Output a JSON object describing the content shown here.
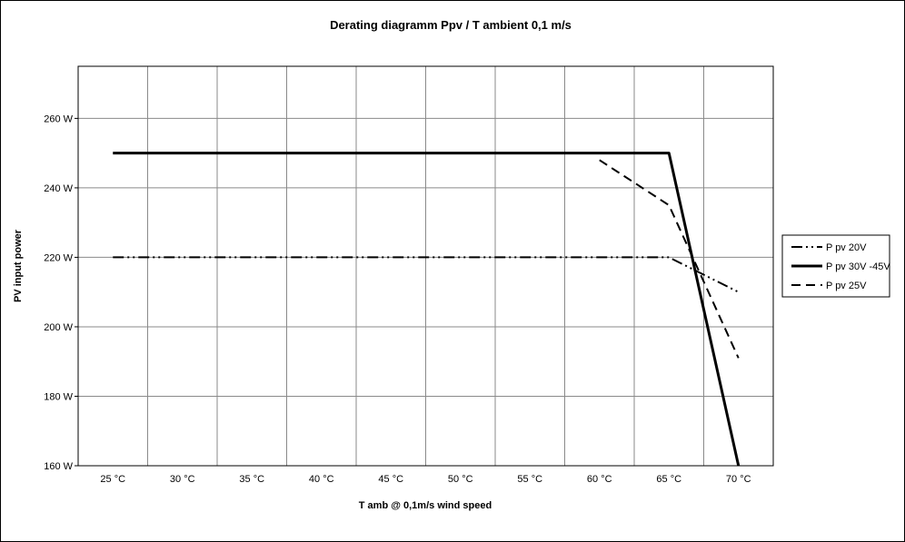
{
  "chart_data": {
    "type": "line",
    "title": "Derating diagramm Ppv / T ambient 0,1 m/s",
    "xlabel": "T amb  @  0,1m/s wind speed",
    "ylabel": "PV input power",
    "x": [
      25,
      30,
      35,
      40,
      45,
      50,
      55,
      60,
      65,
      70
    ],
    "x_tick_labels": [
      "25 °C",
      "30 °C",
      "35 °C",
      "40 °C",
      "45 °C",
      "50 °C",
      "55 °C",
      "60 °C",
      "65 °C",
      "70 °C"
    ],
    "y_tick_labels": [
      "160 W",
      "180 W",
      "200 W",
      "220 W",
      "240 W",
      "260 W"
    ],
    "y_ticks": [
      160,
      180,
      200,
      220,
      240,
      260
    ],
    "xlim": [
      22.5,
      72.5
    ],
    "ylim": [
      160,
      275
    ],
    "grid": true,
    "legend_position": "right",
    "series": [
      {
        "name": "P pv 20V",
        "style": "dash-dot-dot",
        "points": [
          [
            25,
            220
          ],
          [
            30,
            220
          ],
          [
            35,
            220
          ],
          [
            40,
            220
          ],
          [
            45,
            220
          ],
          [
            50,
            220
          ],
          [
            55,
            220
          ],
          [
            60,
            220
          ],
          [
            65,
            220
          ],
          [
            70,
            210
          ]
        ]
      },
      {
        "name": "P pv 30V -45V",
        "style": "solid",
        "points": [
          [
            25,
            250
          ],
          [
            30,
            250
          ],
          [
            35,
            250
          ],
          [
            40,
            250
          ],
          [
            45,
            250
          ],
          [
            50,
            250
          ],
          [
            55,
            250
          ],
          [
            60,
            250
          ],
          [
            65,
            250
          ],
          [
            70,
            160
          ]
        ]
      },
      {
        "name": "P pv 25V",
        "style": "dash",
        "points": [
          [
            60,
            248
          ],
          [
            65,
            235
          ],
          [
            70,
            191
          ]
        ]
      }
    ]
  }
}
